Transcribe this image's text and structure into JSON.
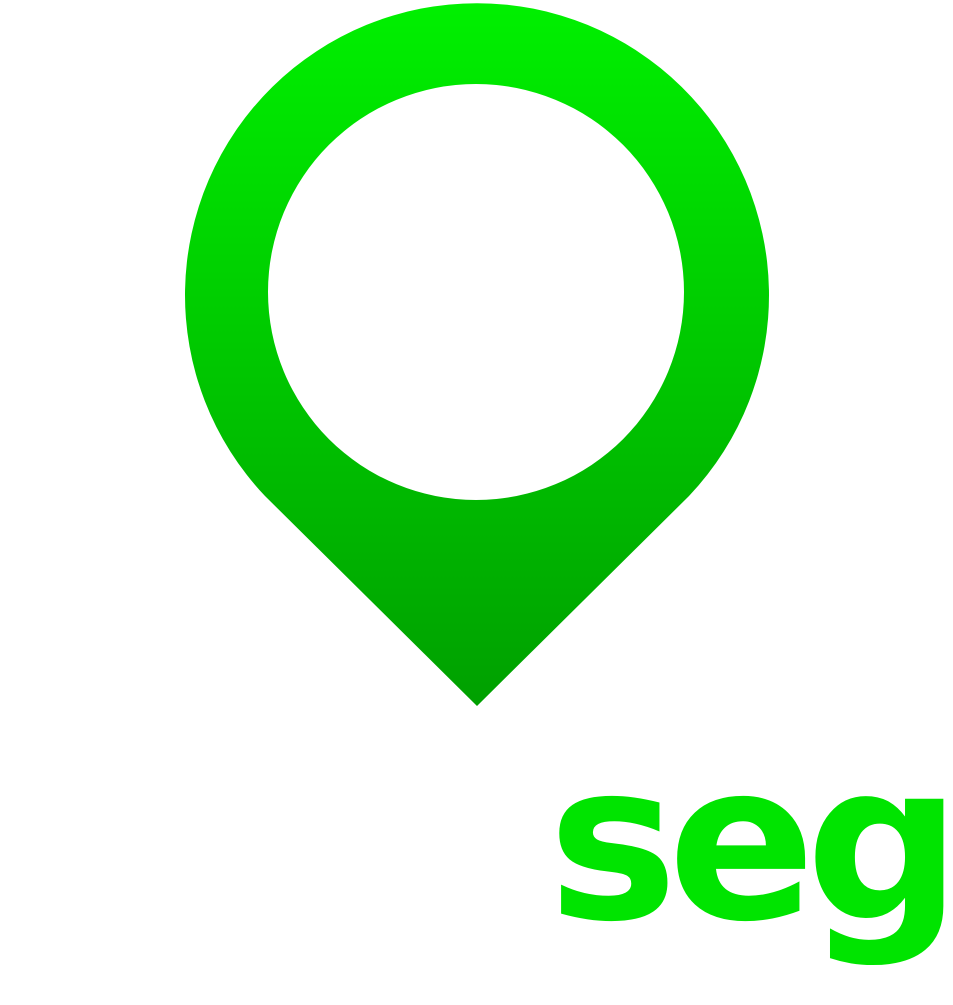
{
  "logo": {
    "icon": "map-pin-icon",
    "pin_gradient_top": "#00f000",
    "pin_gradient_bottom": "#00a000",
    "wordmark_suffix": "seg",
    "wordmark_color": "#00e400"
  }
}
